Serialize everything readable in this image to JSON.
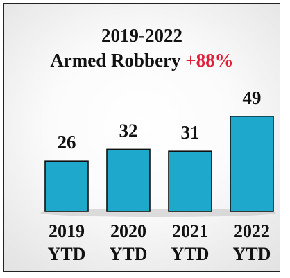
{
  "chart_data": {
    "type": "bar",
    "title": "2019-2022",
    "subtitle": "Armed Robbery",
    "change_label": "+88%",
    "categories": [
      [
        "2019",
        "YTD"
      ],
      [
        "2020",
        "YTD"
      ],
      [
        "2021",
        "YTD"
      ],
      [
        "2022",
        "YTD"
      ]
    ],
    "values": [
      26,
      32,
      31,
      49
    ],
    "xlabel": "",
    "ylabel": "",
    "grid": false,
    "legend": "none",
    "colors": {
      "bar_fill": "#1ea8cc",
      "bar_stroke": "#111111",
      "text": "#111111",
      "change": "#e0203a"
    }
  }
}
